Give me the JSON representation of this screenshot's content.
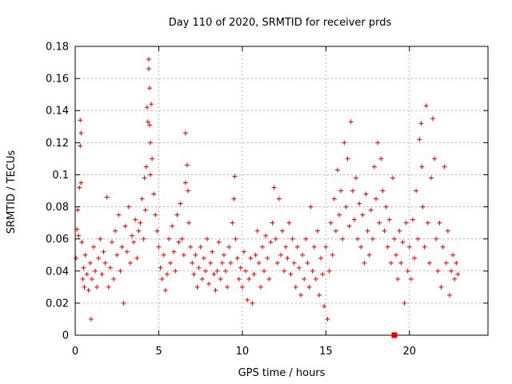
{
  "chart_data": {
    "type": "scatter",
    "title": "Day 110 of 2020, SRMTID for receiver prds",
    "xlabel": "GPS time / hours",
    "ylabel": "SRMTID / TECUs",
    "xlim": [
      0,
      24.7
    ],
    "ylim": [
      0,
      0.18
    ],
    "xticks": [
      0,
      5,
      10,
      15,
      20
    ],
    "yticks": [
      0,
      0.02,
      0.04,
      0.06,
      0.08,
      0.1,
      0.12,
      0.14,
      0.16,
      0.18
    ],
    "xtick_labels": [
      "0",
      "5",
      "10",
      "15",
      "20"
    ],
    "ytick_labels": [
      "0",
      "0.02",
      "0.04",
      "0.06",
      "0.08",
      "0.1",
      "0.12",
      "0.14",
      "0.16",
      "0.18"
    ],
    "grid": true,
    "marker": "plus",
    "color": "#e00000",
    "special_points": [
      {
        "x": 19.1,
        "y": 0.0,
        "marker": "filled-square"
      }
    ],
    "series": [
      {
        "name": "SRMTID",
        "points": [
          [
            0.05,
            0.048
          ],
          [
            0.1,
            0.066
          ],
          [
            0.15,
            0.078
          ],
          [
            0.2,
            0.062
          ],
          [
            0.25,
            0.092
          ],
          [
            0.3,
            0.134
          ],
          [
            0.3,
            0.118
          ],
          [
            0.35,
            0.126
          ],
          [
            0.35,
            0.095
          ],
          [
            0.4,
            0.058
          ],
          [
            0.45,
            0.035
          ],
          [
            0.5,
            0.042
          ],
          [
            0.55,
            0.03
          ],
          [
            0.6,
            0.05
          ],
          [
            0.7,
            0.038
          ],
          [
            0.8,
            0.028
          ],
          [
            0.9,
            0.045
          ],
          [
            0.95,
            0.01
          ],
          [
            1.0,
            0.035
          ],
          [
            1.1,
            0.055
          ],
          [
            1.2,
            0.04
          ],
          [
            1.3,
            0.03
          ],
          [
            1.4,
            0.048
          ],
          [
            1.5,
            0.06
          ],
          [
            1.6,
            0.038
          ],
          [
            1.7,
            0.052
          ],
          [
            1.8,
            0.045
          ],
          [
            1.9,
            0.086
          ],
          [
            2.0,
            0.03
          ],
          [
            2.1,
            0.042
          ],
          [
            2.2,
            0.058
          ],
          [
            2.3,
            0.035
          ],
          [
            2.4,
            0.065
          ],
          [
            2.5,
            0.05
          ],
          [
            2.6,
            0.075
          ],
          [
            2.7,
            0.04
          ],
          [
            2.8,
            0.055
          ],
          [
            2.9,
            0.02
          ],
          [
            3.0,
            0.068
          ],
          [
            3.1,
            0.052
          ],
          [
            3.2,
            0.08
          ],
          [
            3.3,
            0.045
          ],
          [
            3.4,
            0.062
          ],
          [
            3.5,
            0.058
          ],
          [
            3.6,
            0.072
          ],
          [
            3.7,
            0.048
          ],
          [
            3.8,
            0.065
          ],
          [
            3.9,
            0.07
          ],
          [
            4.0,
            0.085
          ],
          [
            4.1,
            0.06
          ],
          [
            4.15,
            0.098
          ],
          [
            4.2,
            0.078
          ],
          [
            4.25,
            0.105
          ],
          [
            4.3,
            0.142
          ],
          [
            4.35,
            0.133
          ],
          [
            4.4,
            0.172
          ],
          [
            4.4,
            0.166
          ],
          [
            4.45,
            0.154
          ],
          [
            4.45,
            0.131
          ],
          [
            4.5,
            0.12
          ],
          [
            4.5,
            0.1
          ],
          [
            4.55,
            0.144
          ],
          [
            4.6,
            0.11
          ],
          [
            4.7,
            0.088
          ],
          [
            4.8,
            0.075
          ],
          [
            4.9,
            0.065
          ],
          [
            5.0,
            0.055
          ],
          [
            5.1,
            0.042
          ],
          [
            5.2,
            0.035
          ],
          [
            5.3,
            0.05
          ],
          [
            5.4,
            0.028
          ],
          [
            5.5,
            0.038
          ],
          [
            5.6,
            0.06
          ],
          [
            5.7,
            0.045
          ],
          [
            5.8,
            0.068
          ],
          [
            5.9,
            0.052
          ],
          [
            6.0,
            0.04
          ],
          [
            6.1,
            0.075
          ],
          [
            6.2,
            0.058
          ],
          [
            6.3,
            0.082
          ],
          [
            6.4,
            0.06
          ],
          [
            6.5,
            0.05
          ],
          [
            6.6,
            0.095
          ],
          [
            6.6,
            0.126
          ],
          [
            6.7,
            0.106
          ],
          [
            6.75,
            0.09
          ],
          [
            6.8,
            0.07
          ],
          [
            6.9,
            0.055
          ],
          [
            7.0,
            0.045
          ],
          [
            7.1,
            0.038
          ],
          [
            7.2,
            0.05
          ],
          [
            7.3,
            0.03
          ],
          [
            7.4,
            0.042
          ],
          [
            7.5,
            0.055
          ],
          [
            7.6,
            0.035
          ],
          [
            7.7,
            0.048
          ],
          [
            7.8,
            0.04
          ],
          [
            7.9,
            0.06
          ],
          [
            8.0,
            0.032
          ],
          [
            8.1,
            0.045
          ],
          [
            8.2,
            0.052
          ],
          [
            8.3,
            0.038
          ],
          [
            8.4,
            0.028
          ],
          [
            8.5,
            0.04
          ],
          [
            8.6,
            0.058
          ],
          [
            8.7,
            0.035
          ],
          [
            8.8,
            0.045
          ],
          [
            8.9,
            0.05
          ],
          [
            9.0,
            0.04
          ],
          [
            9.1,
            0.03
          ],
          [
            9.2,
            0.055
          ],
          [
            9.3,
            0.045
          ],
          [
            9.4,
            0.07
          ],
          [
            9.5,
            0.085
          ],
          [
            9.55,
            0.099
          ],
          [
            9.6,
            0.06
          ],
          [
            9.7,
            0.048
          ],
          [
            9.8,
            0.035
          ],
          [
            9.9,
            0.042
          ],
          [
            10.0,
            0.03
          ],
          [
            10.1,
            0.052
          ],
          [
            10.2,
            0.04
          ],
          [
            10.3,
            0.022
          ],
          [
            10.4,
            0.035
          ],
          [
            10.5,
            0.048
          ],
          [
            10.6,
            0.02
          ],
          [
            10.7,
            0.038
          ],
          [
            10.8,
            0.05
          ],
          [
            10.9,
            0.065
          ],
          [
            11.0,
            0.045
          ],
          [
            11.1,
            0.03
          ],
          [
            11.2,
            0.055
          ],
          [
            11.3,
            0.04
          ],
          [
            11.4,
            0.062
          ],
          [
            11.5,
            0.048
          ],
          [
            11.6,
            0.035
          ],
          [
            11.7,
            0.058
          ],
          [
            11.8,
            0.07
          ],
          [
            11.9,
            0.092
          ],
          [
            12.0,
            0.06
          ],
          [
            12.1,
            0.045
          ],
          [
            12.2,
            0.085
          ],
          [
            12.3,
            0.05
          ],
          [
            12.4,
            0.065
          ],
          [
            12.5,
            0.04
          ],
          [
            12.6,
            0.055
          ],
          [
            12.7,
            0.048
          ],
          [
            12.8,
            0.07
          ],
          [
            12.9,
            0.038
          ],
          [
            13.0,
            0.06
          ],
          [
            13.1,
            0.045
          ],
          [
            13.2,
            0.03
          ],
          [
            13.3,
            0.055
          ],
          [
            13.4,
            0.042
          ],
          [
            13.5,
            0.025
          ],
          [
            13.6,
            0.05
          ],
          [
            13.7,
            0.035
          ],
          [
            13.8,
            0.06
          ],
          [
            13.9,
            0.045
          ],
          [
            14.0,
            0.03
          ],
          [
            14.1,
            0.08
          ],
          [
            14.2,
            0.04
          ],
          [
            14.3,
            0.055
          ],
          [
            14.4,
            0.035
          ],
          [
            14.5,
            0.065
          ],
          [
            14.6,
            0.025
          ],
          [
            14.7,
            0.048
          ],
          [
            14.8,
            0.038
          ],
          [
            14.9,
            0.018
          ],
          [
            15.0,
            0.055
          ],
          [
            15.1,
            0.01
          ],
          [
            15.2,
            0.04
          ],
          [
            15.3,
            0.07
          ],
          [
            15.4,
            0.05
          ],
          [
            15.5,
            0.085
          ],
          [
            15.6,
            0.065
          ],
          [
            15.7,
            0.103
          ],
          [
            15.8,
            0.075
          ],
          [
            15.9,
            0.09
          ],
          [
            16.0,
            0.06
          ],
          [
            16.1,
            0.12
          ],
          [
            16.2,
            0.08
          ],
          [
            16.3,
            0.11
          ],
          [
            16.4,
            0.068
          ],
          [
            16.5,
            0.133
          ],
          [
            16.6,
            0.09
          ],
          [
            16.7,
            0.072
          ],
          [
            16.8,
            0.098
          ],
          [
            16.9,
            0.06
          ],
          [
            17.0,
            0.082
          ],
          [
            17.1,
            0.055
          ],
          [
            17.2,
            0.075
          ],
          [
            17.3,
            0.045
          ],
          [
            17.4,
            0.088
          ],
          [
            17.5,
            0.065
          ],
          [
            17.6,
            0.05
          ],
          [
            17.7,
            0.078
          ],
          [
            17.8,
            0.06
          ],
          [
            17.9,
            0.105
          ],
          [
            18.0,
            0.085
          ],
          [
            18.1,
            0.12
          ],
          [
            18.2,
            0.07
          ],
          [
            18.3,
            0.11
          ],
          [
            18.4,
            0.09
          ],
          [
            18.5,
            0.065
          ],
          [
            18.6,
            0.08
          ],
          [
            18.7,
            0.055
          ],
          [
            18.8,
            0.072
          ],
          [
            18.9,
            0.045
          ],
          [
            19.0,
            0.098
          ],
          [
            19.1,
            0.06
          ],
          [
            19.2,
            0.05
          ],
          [
            19.3,
            0.035
          ],
          [
            19.4,
            0.065
          ],
          [
            19.5,
            0.045
          ],
          [
            19.6,
            0.058
          ],
          [
            19.7,
            0.02
          ],
          [
            19.8,
            0.07
          ],
          [
            19.9,
            0.04
          ],
          [
            20.0,
            0.055
          ],
          [
            20.1,
            0.035
          ],
          [
            20.2,
            0.072
          ],
          [
            20.3,
            0.048
          ],
          [
            20.4,
            0.09
          ],
          [
            20.5,
            0.06
          ],
          [
            20.6,
            0.122
          ],
          [
            20.7,
            0.132
          ],
          [
            20.75,
            0.105
          ],
          [
            20.8,
            0.08
          ],
          [
            20.9,
            0.055
          ],
          [
            21.0,
            0.143
          ],
          [
            21.1,
            0.07
          ],
          [
            21.2,
            0.045
          ],
          [
            21.3,
            0.098
          ],
          [
            21.4,
            0.135
          ],
          [
            21.5,
            0.11
          ],
          [
            21.6,
            0.06
          ],
          [
            21.7,
            0.04
          ],
          [
            21.8,
            0.07
          ],
          [
            21.9,
            0.03
          ],
          [
            22.0,
            0.055
          ],
          [
            22.1,
            0.105
          ],
          [
            22.2,
            0.045
          ],
          [
            22.3,
            0.065
          ],
          [
            22.4,
            0.025
          ],
          [
            22.5,
            0.04
          ],
          [
            22.6,
            0.05
          ],
          [
            22.7,
            0.035
          ],
          [
            22.8,
            0.045
          ],
          [
            22.9,
            0.038
          ]
        ]
      }
    ]
  }
}
